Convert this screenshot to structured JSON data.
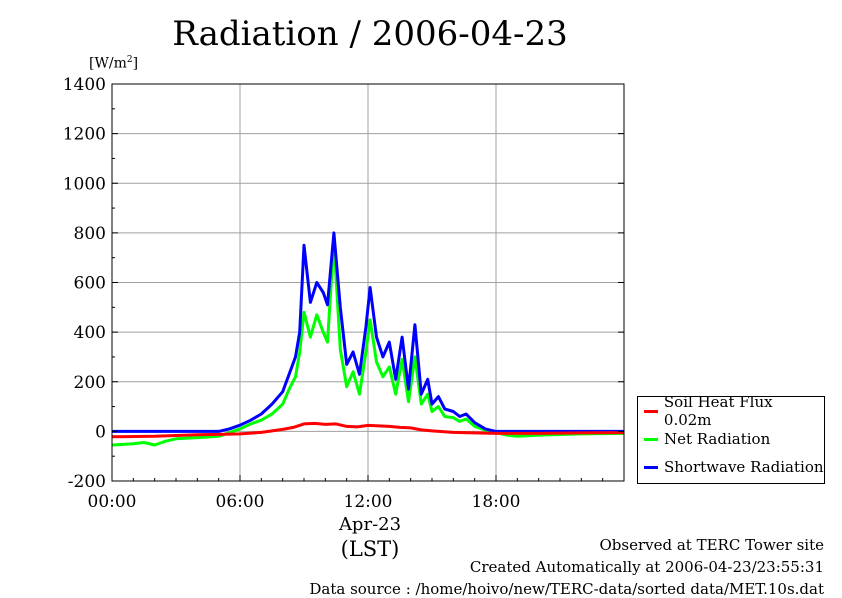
{
  "page": {
    "title": "Radiation / 2006-04-23",
    "unit_label": "[W/m",
    "unit_sup": "2",
    "unit_close": "]",
    "x_date_label": "Apr-23",
    "x_tz_label": "(LST)",
    "footer": [
      "Observed at TERC Tower site",
      "Created Automatically at 2006-04-23/23:55:31",
      "Data source : /home/hoivo/new/TERC-data/sorted  data/MET.10s.dat"
    ]
  },
  "chart_data": {
    "type": "line",
    "title": "Radiation / 2006-04-23",
    "xlabel": "(LST)",
    "ylabel": "[W/m2]",
    "ylim": [
      -200,
      1400
    ],
    "xlim": [
      0,
      24
    ],
    "yticks": [
      -200,
      0,
      200,
      400,
      600,
      800,
      1000,
      1200,
      1400
    ],
    "xticks": [
      0,
      6,
      12,
      18
    ],
    "xtick_labels": [
      "00:00",
      "06:00",
      "12:00",
      "18:00"
    ],
    "grid": true,
    "legend_position": "right",
    "series": [
      {
        "name": "Soil Heat Flux 0.02m",
        "color": "#ff0000",
        "points": [
          [
            0,
            -22
          ],
          [
            2,
            -20
          ],
          [
            4,
            -14
          ],
          [
            5,
            -12
          ],
          [
            6,
            -10
          ],
          [
            7,
            -4
          ],
          [
            8,
            8
          ],
          [
            8.5,
            16
          ],
          [
            9,
            30
          ],
          [
            9.5,
            32
          ],
          [
            10,
            28
          ],
          [
            10.5,
            30
          ],
          [
            11,
            20
          ],
          [
            11.5,
            18
          ],
          [
            12,
            24
          ],
          [
            12.5,
            22
          ],
          [
            13,
            20
          ],
          [
            13.5,
            16
          ],
          [
            14,
            14
          ],
          [
            14.5,
            6
          ],
          [
            15,
            2
          ],
          [
            16,
            -4
          ],
          [
            17,
            -6
          ],
          [
            18,
            -8
          ],
          [
            20,
            -8
          ],
          [
            22,
            -6
          ],
          [
            24,
            -5
          ]
        ]
      },
      {
        "name": "Net Radiation",
        "color": "#00ff00",
        "points": [
          [
            0,
            -55
          ],
          [
            1,
            -50
          ],
          [
            1.5,
            -45
          ],
          [
            2,
            -55
          ],
          [
            2.5,
            -40
          ],
          [
            3,
            -30
          ],
          [
            4,
            -25
          ],
          [
            5,
            -20
          ],
          [
            5.5,
            -5
          ],
          [
            6,
            10
          ],
          [
            6.5,
            30
          ],
          [
            7,
            45
          ],
          [
            7.5,
            70
          ],
          [
            8,
            110
          ],
          [
            8.3,
            170
          ],
          [
            8.6,
            220
          ],
          [
            8.8,
            320
          ],
          [
            9,
            480
          ],
          [
            9.3,
            380
          ],
          [
            9.6,
            470
          ],
          [
            9.9,
            400
          ],
          [
            10.1,
            360
          ],
          [
            10.4,
            770
          ],
          [
            10.7,
            330
          ],
          [
            11,
            180
          ],
          [
            11.3,
            240
          ],
          [
            11.6,
            150
          ],
          [
            11.9,
            320
          ],
          [
            12.1,
            450
          ],
          [
            12.4,
            280
          ],
          [
            12.7,
            220
          ],
          [
            13,
            260
          ],
          [
            13.3,
            150
          ],
          [
            13.6,
            290
          ],
          [
            13.9,
            120
          ],
          [
            14.2,
            300
          ],
          [
            14.5,
            110
          ],
          [
            14.8,
            150
          ],
          [
            15,
            80
          ],
          [
            15.3,
            100
          ],
          [
            15.6,
            60
          ],
          [
            16,
            55
          ],
          [
            16.3,
            40
          ],
          [
            16.6,
            50
          ],
          [
            17,
            20
          ],
          [
            17.5,
            5
          ],
          [
            18,
            -5
          ],
          [
            18.5,
            -15
          ],
          [
            19,
            -20
          ],
          [
            20,
            -15
          ],
          [
            22,
            -10
          ],
          [
            24,
            -8
          ]
        ]
      },
      {
        "name": "Shortwave Radiation",
        "color": "#0000ff",
        "points": [
          [
            0,
            0
          ],
          [
            4,
            0
          ],
          [
            5,
            0
          ],
          [
            5.5,
            10
          ],
          [
            6,
            25
          ],
          [
            6.5,
            45
          ],
          [
            7,
            70
          ],
          [
            7.5,
            110
          ],
          [
            8,
            160
          ],
          [
            8.3,
            230
          ],
          [
            8.6,
            300
          ],
          [
            8.8,
            400
          ],
          [
            9,
            750
          ],
          [
            9.3,
            520
          ],
          [
            9.6,
            600
          ],
          [
            9.9,
            560
          ],
          [
            10.1,
            510
          ],
          [
            10.4,
            800
          ],
          [
            10.7,
            500
          ],
          [
            11,
            270
          ],
          [
            11.3,
            320
          ],
          [
            11.6,
            230
          ],
          [
            11.9,
            420
          ],
          [
            12.1,
            580
          ],
          [
            12.4,
            380
          ],
          [
            12.7,
            300
          ],
          [
            13,
            360
          ],
          [
            13.3,
            210
          ],
          [
            13.6,
            380
          ],
          [
            13.9,
            170
          ],
          [
            14.2,
            430
          ],
          [
            14.5,
            150
          ],
          [
            14.8,
            210
          ],
          [
            15,
            110
          ],
          [
            15.3,
            140
          ],
          [
            15.6,
            90
          ],
          [
            16,
            80
          ],
          [
            16.3,
            60
          ],
          [
            16.6,
            70
          ],
          [
            17,
            35
          ],
          [
            17.5,
            10
          ],
          [
            18,
            0
          ],
          [
            20,
            0
          ],
          [
            24,
            0
          ]
        ]
      }
    ]
  }
}
